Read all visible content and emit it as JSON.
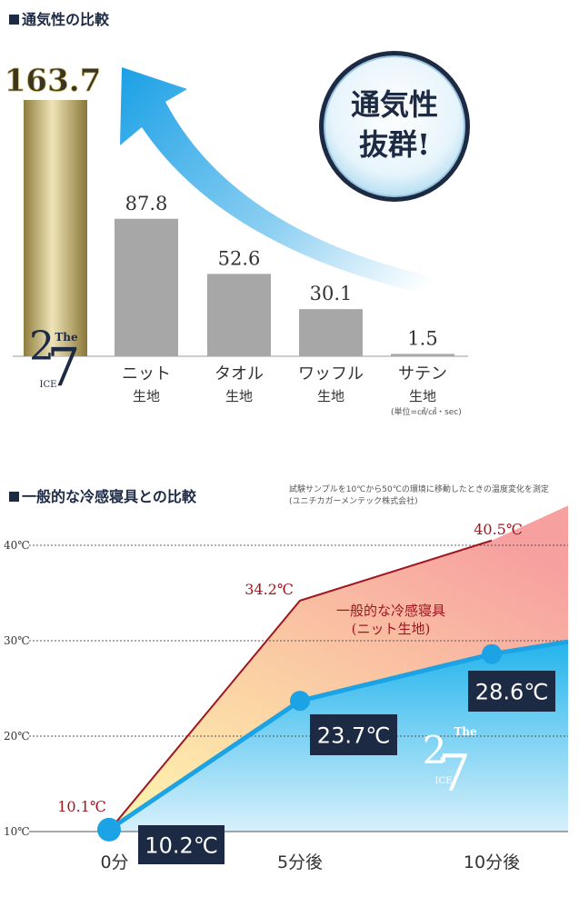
{
  "colors": {
    "navy": "#1d2a44",
    "bar_gray": "#a7a7a7",
    "gold_light": "#e7dcae",
    "gold_dark": "#8f7d3c",
    "red": "#a0161f",
    "blue": "#1ba3e6"
  },
  "chart1": {
    "title": "通気性の比較",
    "unit_note": "(単位=㎤/㎠・sec)",
    "badge": [
      "通気性",
      "抜群!"
    ],
    "logo": {
      "num1": "2",
      "num2": "7",
      "the": "The",
      "ice": "ICE"
    }
  },
  "chart2": {
    "title": "一般的な冷感寝具との比較",
    "note": [
      "試験サンプルを10℃から50℃の環境に移動したときの温度変化を測定",
      "(ユニチカガーメンテック株式会社)"
    ],
    "series_label": [
      "一般的な冷感寝具",
      "(ニット生地)"
    ]
  },
  "chart_data": [
    {
      "type": "bar",
      "title": "通気性の比較",
      "categories": [
        "The ICE 27",
        "ニット生地",
        "タオル生地",
        "ワッフル生地",
        "サテン生地"
      ],
      "values": [
        163.7,
        87.8,
        52.6,
        30.1,
        1.5
      ],
      "value_labels": [
        "163.7",
        "87.8",
        "52.6",
        "30.1",
        "1.5"
      ],
      "tick_labels": [
        [
          "",
          ""
        ],
        [
          "ニット",
          "生地"
        ],
        [
          "タオル",
          "生地"
        ],
        [
          "ワッフル",
          "生地"
        ],
        [
          "サテン",
          "生地"
        ]
      ],
      "unit": "(単位=㎤/㎠・sec)",
      "ylim": [
        0,
        163.7
      ],
      "grid": false
    },
    {
      "type": "line",
      "title": "一般的な冷感寝具との比較",
      "x": [
        0,
        5,
        10
      ],
      "x_tick_labels": [
        "0分",
        "5分後",
        "10分後"
      ],
      "y_tick_labels": [
        "10℃",
        "20℃",
        "30℃",
        "40℃"
      ],
      "y_ticks": [
        10,
        20,
        30,
        40
      ],
      "ylim": [
        10,
        40
      ],
      "grid": true,
      "series": [
        {
          "name": "一般的な冷感寝具(ニット生地)",
          "values": [
            10.1,
            34.2,
            40.5
          ],
          "labels": [
            "10.1℃",
            "34.2℃",
            "40.5℃"
          ]
        },
        {
          "name": "The ICE 27",
          "values": [
            10.2,
            23.7,
            28.6
          ],
          "labels": [
            "10.2℃",
            "23.7℃",
            "28.6℃"
          ]
        }
      ]
    }
  ]
}
